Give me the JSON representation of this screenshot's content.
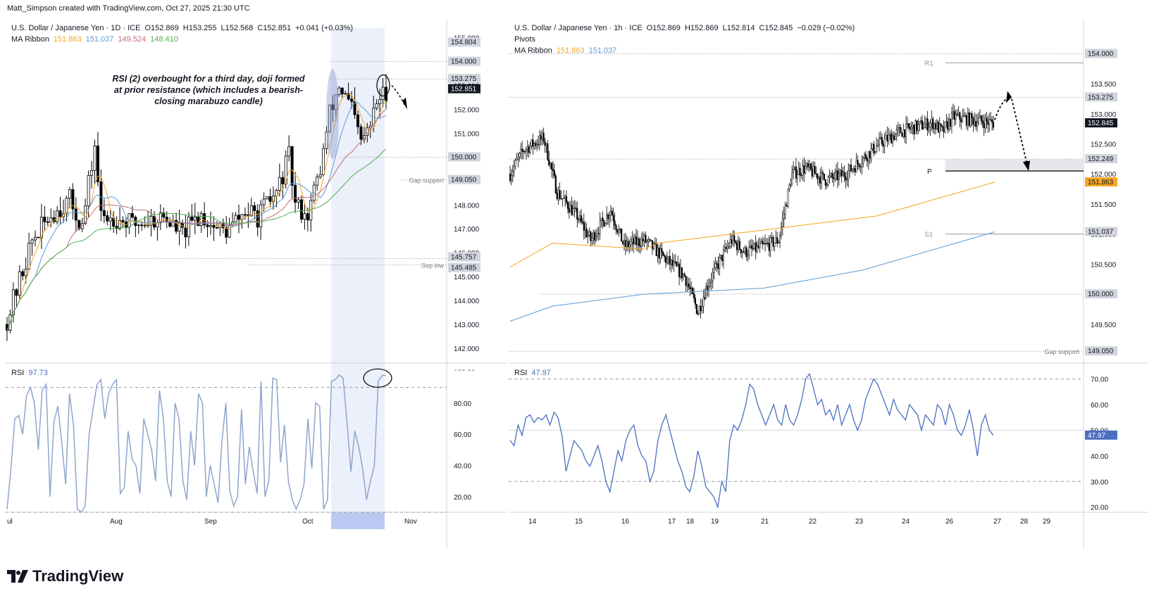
{
  "header": {
    "credit": "Matt_Simpson created with TradingView.com, Oct 27, 2025 21:30 UTC"
  },
  "brand": {
    "name": "TradingView"
  },
  "colors": {
    "up": "#000000",
    "down": "#000000",
    "ma_orange": "#f5a623",
    "ma_blue": "#5b9bd5",
    "ma_red": "#c46b7a",
    "ma_green": "#4caf50",
    "rsi_left": "#8fa5cc",
    "rsi_right": "#4a6fc1",
    "accent": "#131722"
  },
  "left": {
    "legend": {
      "line1": {
        "symbol": "U.S. Dollar / Japanese Yen · 1D · ICE",
        "o": "O152.869",
        "h": "H153.255",
        "l": "L152.568",
        "c": "C152.851",
        "chg": "+0.041 (+0.03%)"
      },
      "line2": {
        "label": "MA Ribbon",
        "v1": "151.863",
        "v2": "151.037",
        "v3": "149.524",
        "v4": "148.410"
      }
    },
    "annotation": "RSI (2) overbought for a third day, doji formed at prior resistance (which includes a bearish-closing marabuzo candle)",
    "level_labels": {
      "gap": "Gap support",
      "sep": "Sep low"
    },
    "rsi_label": "RSI",
    "rsi_value": "97.73",
    "rsi_ticks": [
      "100.00",
      "80.00",
      "60.00",
      "40.00",
      "20.00"
    ],
    "x_labels": [
      "ul",
      "Aug",
      "Sep",
      "Oct",
      "Nov"
    ]
  },
  "right": {
    "legend": {
      "line1": {
        "symbol": "U.S. Dollar / Japanese Yen · 1h · ICE",
        "o": "O152.869",
        "h": "H152.869",
        "l": "L152.814",
        "c": "C152.845",
        "chg": "−0.029 (−0.02%)"
      },
      "line2": "Pivots",
      "line3": {
        "label": "MA Ribbon",
        "v1": "151.863",
        "v2": "151.037"
      }
    },
    "pivot_labels": {
      "r1": "R1",
      "p": "P",
      "s1": "S1"
    },
    "level_labels": {
      "gap": "Gap support"
    },
    "rsi_label": "RSI",
    "rsi_value": "47.97",
    "rsi_ticks": [
      "70.00",
      "60.00",
      "50.00",
      "40.00",
      "30.00",
      "20.00"
    ],
    "x_labels": [
      "14",
      "15",
      "16",
      "17",
      "18",
      "19",
      "21",
      "22",
      "23",
      "24",
      "26",
      "27",
      "28",
      "29"
    ]
  },
  "chart_data": [
    {
      "type": "candlestick",
      "title": "U.S. Dollar / Japanese Yen · 1D · ICE",
      "timeframe": "1D",
      "ylim": [
        141.5,
        155.4
      ],
      "y_ticks": [
        142.0,
        143.0,
        144.0,
        145.0,
        146.0,
        147.0,
        148.0,
        149.0,
        150.0,
        151.0,
        152.0,
        153.0,
        154.0,
        155.0
      ],
      "price_labels": [
        {
          "value": "154.804",
          "style": "grey"
        },
        {
          "value": "154.000",
          "style": "grey"
        },
        {
          "value": "153.275",
          "style": "grey"
        },
        {
          "value": "152.851",
          "style": "last"
        },
        {
          "value": "150.000",
          "style": "grey"
        },
        {
          "value": "149.050",
          "style": "grey"
        },
        {
          "value": "145.757",
          "style": "grey"
        },
        {
          "value": "145.485",
          "style": "grey"
        }
      ],
      "levels": [
        154.0,
        153.275,
        150.0,
        149.05,
        145.757,
        145.485
      ],
      "x_labels": [
        "ul",
        "Aug",
        "Sep",
        "Oct",
        "Nov"
      ],
      "highlight_period": "Oct 20 – Oct 27",
      "ma_ribbon": [
        {
          "name": "MA Ribbon 1",
          "last": 151.863,
          "color": "#f5a623"
        },
        {
          "name": "MA Ribbon 2",
          "last": 151.037,
          "color": "#5b9bd5"
        },
        {
          "name": "MA Ribbon 3",
          "last": 149.524,
          "color": "#c46b7a"
        },
        {
          "name": "MA Ribbon 4",
          "last": 148.41,
          "color": "#4caf50"
        }
      ],
      "last": {
        "open": 152.869,
        "high": 153.255,
        "low": 152.568,
        "close": 152.851,
        "change": 0.041,
        "change_pct": 0.03
      }
    },
    {
      "type": "line",
      "title": "RSI",
      "ylim": [
        10,
        102
      ],
      "y_ticks": [
        100,
        80,
        60,
        40,
        20
      ],
      "overbought": 90,
      "oversold": 10,
      "last": 97.73,
      "values": [
        12,
        38,
        70,
        72,
        60,
        85,
        90,
        80,
        50,
        88,
        92,
        20,
        68,
        78,
        55,
        28,
        86,
        66,
        12,
        10,
        14,
        60,
        76,
        92,
        95,
        70,
        86,
        92,
        95,
        22,
        26,
        62,
        44,
        40,
        22,
        70,
        60,
        50,
        30,
        88,
        70,
        30,
        20,
        80,
        70,
        30,
        18,
        62,
        40,
        86,
        80,
        20,
        40,
        28,
        16,
        56,
        80,
        24,
        14,
        20,
        76,
        28,
        52,
        36,
        22,
        94,
        20,
        30,
        96,
        95,
        42,
        66,
        30,
        18,
        12,
        18,
        28,
        70,
        38,
        80,
        78,
        12,
        18,
        94,
        95,
        98,
        96,
        68,
        36,
        62,
        52,
        38,
        18,
        30,
        40,
        94,
        97.73,
        97.7
      ]
    },
    {
      "type": "candlestick",
      "title": "U.S. Dollar / Japanese Yen · 1h · ICE",
      "timeframe": "1h",
      "ylim": [
        148.9,
        154.45
      ],
      "y_ticks": [
        149.5,
        150.0,
        150.5,
        151.0,
        151.5,
        152.0,
        152.5,
        153.0,
        153.5,
        154.0
      ],
      "price_labels": [
        {
          "value": "154.000",
          "style": "grey"
        },
        {
          "value": "153.275",
          "style": "grey"
        },
        {
          "value": "152.845",
          "style": "last"
        },
        {
          "value": "152.249",
          "style": "grey"
        },
        {
          "value": "151.863",
          "style": "orange"
        },
        {
          "value": "151.037",
          "style": "grey"
        },
        {
          "value": "150.000",
          "style": "grey"
        },
        {
          "value": "149.050",
          "style": "grey"
        }
      ],
      "pivots": [
        {
          "name": "R1",
          "value": 153.85
        },
        {
          "name": "P",
          "value": 152.05
        },
        {
          "name": "S1",
          "value": 151.0
        }
      ],
      "x_labels": [
        "14",
        "15",
        "16",
        "17",
        "18",
        "19",
        "21",
        "22",
        "23",
        "24",
        "26",
        "27",
        "28",
        "29"
      ],
      "ma_ribbon": [
        {
          "name": "MA Ribbon 1",
          "last": 151.863,
          "color": "#f5a623"
        },
        {
          "name": "MA Ribbon 2",
          "last": 151.037,
          "color": "#5b9bd5"
        }
      ],
      "last": {
        "open": 152.869,
        "high": 152.869,
        "low": 152.814,
        "close": 152.845,
        "change": -0.029,
        "change_pct": -0.02
      }
    },
    {
      "type": "line",
      "title": "RSI",
      "ylim": [
        18,
        74
      ],
      "y_ticks": [
        70,
        60,
        50,
        40,
        30,
        20
      ],
      "overbought": 70,
      "oversold": 30,
      "last": 47.97,
      "values": [
        46,
        44,
        52,
        48,
        55,
        56,
        53,
        55,
        54,
        56,
        52,
        57,
        55,
        48,
        34,
        40,
        46,
        44,
        42,
        38,
        36,
        40,
        44,
        38,
        30,
        26,
        34,
        42,
        38,
        46,
        50,
        52,
        44,
        40,
        38,
        30,
        34,
        46,
        52,
        56,
        50,
        44,
        38,
        34,
        28,
        26,
        32,
        42,
        36,
        28,
        26,
        24,
        20,
        30,
        26,
        46,
        52,
        50,
        54,
        60,
        68,
        66,
        60,
        56,
        52,
        56,
        60,
        54,
        52,
        60,
        54,
        52,
        56,
        62,
        70,
        72,
        66,
        60,
        62,
        56,
        58,
        54,
        60,
        52,
        56,
        60,
        54,
        50,
        54,
        62,
        66,
        70,
        68,
        64,
        60,
        56,
        62,
        58,
        56,
        54,
        60,
        58,
        56,
        50,
        56,
        54,
        52,
        60,
        58,
        52,
        60,
        56,
        50,
        48,
        52,
        58,
        50,
        40,
        52,
        56,
        50,
        48
      ]
    }
  ]
}
